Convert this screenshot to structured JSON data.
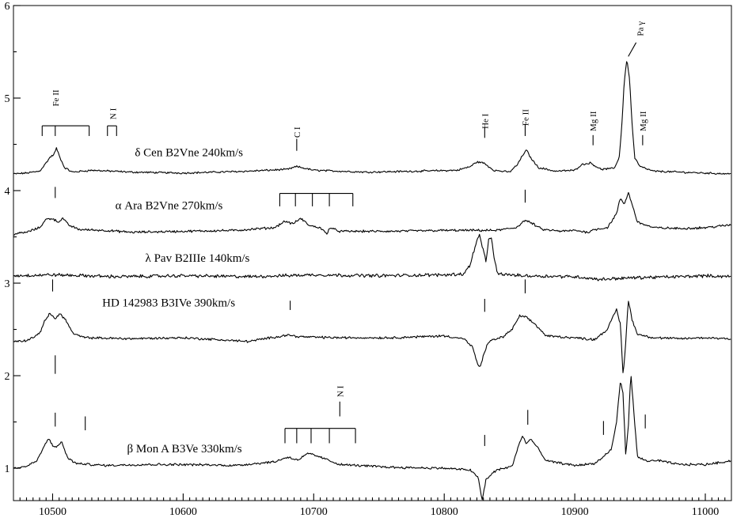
{
  "chart_data": {
    "type": "line",
    "title": "",
    "xlabel": "",
    "ylabel": "",
    "xlim": [
      10470,
      11020
    ],
    "ylim": [
      0.65,
      6.0
    ],
    "x_ticks": [
      10500,
      10600,
      10700,
      10800,
      10900,
      11000
    ],
    "y_ticks": [
      1,
      2,
      3,
      4,
      5,
      6
    ],
    "grid": false,
    "legend": "none",
    "series": [
      {
        "name": "δ Cen   B2Vne   240km/s",
        "label_x": 10563,
        "label_y": 4.37,
        "noise": 0.008,
        "points": [
          [
            10470,
            4.18
          ],
          [
            10480,
            4.19
          ],
          [
            10490,
            4.21
          ],
          [
            10494,
            4.28
          ],
          [
            10498,
            4.36
          ],
          [
            10501,
            4.39
          ],
          [
            10503,
            4.46
          ],
          [
            10505,
            4.38
          ],
          [
            10509,
            4.25
          ],
          [
            10515,
            4.2
          ],
          [
            10530,
            4.22
          ],
          [
            10560,
            4.2
          ],
          [
            10600,
            4.19
          ],
          [
            10650,
            4.21
          ],
          [
            10680,
            4.23
          ],
          [
            10687,
            4.26
          ],
          [
            10700,
            4.22
          ],
          [
            10740,
            4.2
          ],
          [
            10780,
            4.21
          ],
          [
            10810,
            4.22
          ],
          [
            10820,
            4.26
          ],
          [
            10825,
            4.31
          ],
          [
            10830,
            4.3
          ],
          [
            10838,
            4.22
          ],
          [
            10850,
            4.2
          ],
          [
            10856,
            4.28
          ],
          [
            10860,
            4.38
          ],
          [
            10863,
            4.44
          ],
          [
            10866,
            4.36
          ],
          [
            10872,
            4.25
          ],
          [
            10885,
            4.21
          ],
          [
            10900,
            4.22
          ],
          [
            10905,
            4.28
          ],
          [
            10912,
            4.3
          ],
          [
            10920,
            4.23
          ],
          [
            10930,
            4.24
          ],
          [
            10934,
            4.35
          ],
          [
            10936,
            4.7
          ],
          [
            10938,
            5.2
          ],
          [
            10940,
            5.42
          ],
          [
            10942,
            5.2
          ],
          [
            10944,
            4.7
          ],
          [
            10946,
            4.35
          ],
          [
            10950,
            4.26
          ],
          [
            10960,
            4.21
          ],
          [
            10980,
            4.2
          ],
          [
            11000,
            4.19
          ],
          [
            11020,
            4.18
          ]
        ]
      },
      {
        "name": "α Ara   B2Vne   270km/s",
        "label_x": 10548,
        "label_y": 3.8,
        "noise": 0.01,
        "points": [
          [
            10470,
            3.53
          ],
          [
            10480,
            3.55
          ],
          [
            10490,
            3.6
          ],
          [
            10495,
            3.69
          ],
          [
            10500,
            3.7
          ],
          [
            10504,
            3.66
          ],
          [
            10508,
            3.7
          ],
          [
            10512,
            3.63
          ],
          [
            10520,
            3.58
          ],
          [
            10540,
            3.57
          ],
          [
            10560,
            3.55
          ],
          [
            10600,
            3.56
          ],
          [
            10640,
            3.57
          ],
          [
            10670,
            3.6
          ],
          [
            10678,
            3.67
          ],
          [
            10684,
            3.64
          ],
          [
            10690,
            3.7
          ],
          [
            10697,
            3.62
          ],
          [
            10705,
            3.6
          ],
          [
            10710,
            3.53
          ],
          [
            10712,
            3.6
          ],
          [
            10720,
            3.56
          ],
          [
            10760,
            3.56
          ],
          [
            10800,
            3.57
          ],
          [
            10840,
            3.57
          ],
          [
            10855,
            3.6
          ],
          [
            10862,
            3.68
          ],
          [
            10868,
            3.64
          ],
          [
            10875,
            3.58
          ],
          [
            10890,
            3.56
          ],
          [
            10900,
            3.57
          ],
          [
            10910,
            3.55
          ],
          [
            10915,
            3.58
          ],
          [
            10925,
            3.6
          ],
          [
            10932,
            3.75
          ],
          [
            10935,
            3.92
          ],
          [
            10938,
            3.85
          ],
          [
            10941,
            3.98
          ],
          [
            10944,
            3.85
          ],
          [
            10948,
            3.66
          ],
          [
            10960,
            3.6
          ],
          [
            10980,
            3.59
          ],
          [
            11000,
            3.6
          ],
          [
            11020,
            3.63
          ]
        ]
      },
      {
        "name": "λ Pav   B2IIIe  140km/s",
        "label_x": 10571,
        "label_y": 3.23,
        "noise": 0.014,
        "points": [
          [
            10470,
            3.08
          ],
          [
            10500,
            3.09
          ],
          [
            10550,
            3.07
          ],
          [
            10600,
            3.08
          ],
          [
            10650,
            3.07
          ],
          [
            10700,
            3.09
          ],
          [
            10750,
            3.08
          ],
          [
            10800,
            3.09
          ],
          [
            10815,
            3.1
          ],
          [
            10820,
            3.2
          ],
          [
            10824,
            3.42
          ],
          [
            10827,
            3.52
          ],
          [
            10830,
            3.35
          ],
          [
            10832,
            3.22
          ],
          [
            10834,
            3.48
          ],
          [
            10836,
            3.5
          ],
          [
            10838,
            3.28
          ],
          [
            10841,
            3.1
          ],
          [
            10860,
            3.08
          ],
          [
            10900,
            3.07
          ],
          [
            10920,
            3.04
          ],
          [
            10930,
            3.05
          ],
          [
            10950,
            3.06
          ],
          [
            10980,
            3.07
          ],
          [
            11000,
            3.08
          ],
          [
            11020,
            3.07
          ]
        ]
      },
      {
        "name": "HD 142983    B3IVe   390km/s",
        "label_x": 10538,
        "label_y": 2.75,
        "noise": 0.01,
        "points": [
          [
            10470,
            2.37
          ],
          [
            10480,
            2.38
          ],
          [
            10490,
            2.45
          ],
          [
            10494,
            2.6
          ],
          [
            10498,
            2.67
          ],
          [
            10502,
            2.62
          ],
          [
            10506,
            2.67
          ],
          [
            10510,
            2.6
          ],
          [
            10516,
            2.45
          ],
          [
            10525,
            2.41
          ],
          [
            10560,
            2.4
          ],
          [
            10600,
            2.41
          ],
          [
            10650,
            2.37
          ],
          [
            10680,
            2.44
          ],
          [
            10690,
            2.42
          ],
          [
            10720,
            2.41
          ],
          [
            10760,
            2.41
          ],
          [
            10800,
            2.43
          ],
          [
            10815,
            2.4
          ],
          [
            10822,
            2.3
          ],
          [
            10826,
            2.1
          ],
          [
            10828,
            2.1
          ],
          [
            10830,
            2.22
          ],
          [
            10834,
            2.37
          ],
          [
            10845,
            2.42
          ],
          [
            10852,
            2.5
          ],
          [
            10858,
            2.65
          ],
          [
            10864,
            2.62
          ],
          [
            10870,
            2.55
          ],
          [
            10878,
            2.43
          ],
          [
            10900,
            2.41
          ],
          [
            10915,
            2.39
          ],
          [
            10925,
            2.5
          ],
          [
            10932,
            2.72
          ],
          [
            10935,
            2.55
          ],
          [
            10937,
            2.0
          ],
          [
            10939,
            2.35
          ],
          [
            10941,
            2.82
          ],
          [
            10944,
            2.6
          ],
          [
            10948,
            2.45
          ],
          [
            10960,
            2.41
          ],
          [
            10980,
            2.4
          ],
          [
            11000,
            2.41
          ],
          [
            11020,
            2.4
          ]
        ]
      },
      {
        "name": "β Mon A    B3Ve   330km/s",
        "label_x": 10557,
        "label_y": 1.17,
        "noise": 0.01,
        "points": [
          [
            10470,
            1.0
          ],
          [
            10480,
            1.02
          ],
          [
            10488,
            1.08
          ],
          [
            10494,
            1.25
          ],
          [
            10497,
            1.32
          ],
          [
            10500,
            1.25
          ],
          [
            10503,
            1.22
          ],
          [
            10507,
            1.29
          ],
          [
            10511,
            1.12
          ],
          [
            10518,
            1.05
          ],
          [
            10540,
            1.03
          ],
          [
            10570,
            1.04
          ],
          [
            10600,
            1.04
          ],
          [
            10640,
            1.03
          ],
          [
            10670,
            1.07
          ],
          [
            10680,
            1.12
          ],
          [
            10688,
            1.09
          ],
          [
            10696,
            1.16
          ],
          [
            10705,
            1.12
          ],
          [
            10720,
            1.04
          ],
          [
            10760,
            1.01
          ],
          [
            10800,
            1.0
          ],
          [
            10820,
            0.98
          ],
          [
            10826,
            0.9
          ],
          [
            10829,
            0.65
          ],
          [
            10832,
            0.88
          ],
          [
            10840,
            0.98
          ],
          [
            10852,
            1.02
          ],
          [
            10857,
            1.25
          ],
          [
            10860,
            1.35
          ],
          [
            10863,
            1.26
          ],
          [
            10866,
            1.32
          ],
          [
            10870,
            1.25
          ],
          [
            10878,
            1.08
          ],
          [
            10900,
            1.03
          ],
          [
            10915,
            1.05
          ],
          [
            10920,
            1.1
          ],
          [
            10924,
            1.15
          ],
          [
            10928,
            1.2
          ],
          [
            10932,
            1.5
          ],
          [
            10935,
            1.95
          ],
          [
            10937,
            1.8
          ],
          [
            10939,
            1.15
          ],
          [
            10941,
            1.45
          ],
          [
            10943,
            2.03
          ],
          [
            10945,
            1.65
          ],
          [
            10948,
            1.12
          ],
          [
            10955,
            1.08
          ],
          [
            10965,
            1.08
          ],
          [
            10980,
            1.04
          ],
          [
            11000,
            1.04
          ],
          [
            11020,
            1.08
          ]
        ]
      }
    ],
    "line_ids": [
      {
        "text": "Fe II",
        "x": 10502,
        "y": 5.0
      },
      {
        "text": "N I",
        "x": 10546,
        "y": 4.83
      },
      {
        "text": "C I",
        "x": 10687,
        "y": 4.63
      },
      {
        "text": "He I",
        "x": 10831,
        "y": 4.75
      },
      {
        "text": "Fe II",
        "x": 10862,
        "y": 4.79
      },
      {
        "text": "Mg II",
        "x": 10914,
        "y": 4.75
      },
      {
        "text": "Mg II",
        "x": 10952,
        "y": 4.75
      },
      {
        "text": "Pa γ",
        "x": 10950,
        "y": 5.75
      },
      {
        "text": "N I",
        "x": 10720,
        "y": 1.83
      }
    ]
  }
}
